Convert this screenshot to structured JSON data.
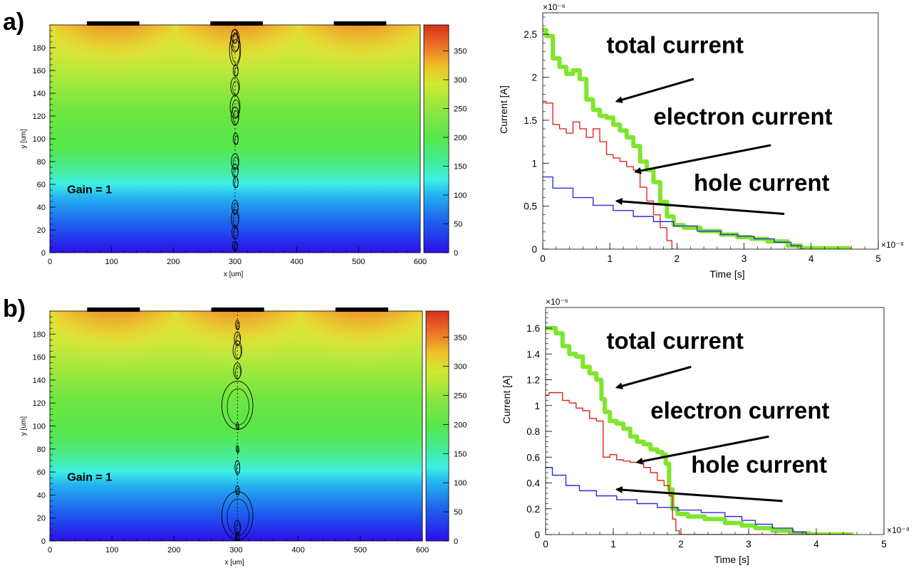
{
  "labels": {
    "a": "a)",
    "b": "b)"
  },
  "colors": {
    "total": "#7ee62b",
    "electron": "#e0281e",
    "hole": "#2d2de0",
    "arrow": "#000000",
    "electrode": "#000000"
  },
  "icons": {
    "arrow": "arrow-icon",
    "electrode": "electrode-bar"
  },
  "chart_data": [
    {
      "id": "a-map",
      "type": "heatmap",
      "title": "",
      "xlabel": "x [um]",
      "ylabel": "y [um]",
      "xlim": [
        0,
        600
      ],
      "ylim": [
        0,
        200
      ],
      "xticks": [
        0,
        100,
        200,
        300,
        400,
        500,
        600
      ],
      "yticks": [
        0,
        20,
        40,
        60,
        80,
        100,
        120,
        140,
        160,
        180
      ],
      "colorbar": {
        "ticks": [
          0,
          50,
          100,
          150,
          200,
          250,
          300,
          350
        ],
        "range": [
          0,
          395
        ]
      },
      "electrodes_x": [
        [
          60,
          145
        ],
        [
          260,
          345
        ],
        [
          460,
          545
        ]
      ],
      "annotation": "Gain = 1",
      "track_x": 300,
      "charge_clouds": [
        {
          "x": 300,
          "y": 186,
          "rx": 7,
          "ry": 10
        },
        {
          "x": 300,
          "y": 178,
          "rx": 9,
          "ry": 14
        },
        {
          "x": 299,
          "y": 190,
          "rx": 5,
          "ry": 6
        },
        {
          "x": 301,
          "y": 160,
          "rx": 4,
          "ry": 5
        },
        {
          "x": 300,
          "y": 146,
          "rx": 7,
          "ry": 8
        },
        {
          "x": 300,
          "y": 128,
          "rx": 8,
          "ry": 10
        },
        {
          "x": 300,
          "y": 120,
          "rx": 6,
          "ry": 8
        },
        {
          "x": 301,
          "y": 100,
          "rx": 4,
          "ry": 5
        },
        {
          "x": 300,
          "y": 80,
          "rx": 6,
          "ry": 7
        },
        {
          "x": 300,
          "y": 72,
          "rx": 5,
          "ry": 6
        },
        {
          "x": 301,
          "y": 62,
          "rx": 4,
          "ry": 5
        },
        {
          "x": 300,
          "y": 40,
          "rx": 5,
          "ry": 6
        },
        {
          "x": 300,
          "y": 30,
          "rx": 6,
          "ry": 8
        },
        {
          "x": 300,
          "y": 18,
          "rx": 5,
          "ry": 6
        },
        {
          "x": 300,
          "y": 6,
          "rx": 4,
          "ry": 4
        }
      ]
    },
    {
      "id": "a-current",
      "type": "line",
      "title": "",
      "xlabel": "Time [s]",
      "ylabel": "Current [A]",
      "x_multiplier": "×10⁻⁹",
      "y_multiplier": "×10⁻⁶",
      "xlim": [
        0,
        5
      ],
      "ylim": [
        0,
        2.75
      ],
      "xticks": [
        0,
        1,
        2,
        3,
        4,
        5
      ],
      "yticks": [
        0,
        0.5,
        1,
        1.5,
        2,
        2.5
      ],
      "annotations": [
        {
          "text": "total current",
          "tx": 0.95,
          "ty": 2.28,
          "ax0": 2.25,
          "ay0": 1.98,
          "ax1": 1.1,
          "ay1": 1.72
        },
        {
          "text": "electron current",
          "tx": 1.65,
          "ty": 1.45,
          "ax0": 3.4,
          "ay0": 1.21,
          "ax1": 1.38,
          "ay1": 0.9
        },
        {
          "text": "hole current",
          "tx": 2.25,
          "ty": 0.68,
          "ax0": 3.6,
          "ay0": 0.41,
          "ax1": 1.1,
          "ay1": 0.56
        }
      ],
      "series": [
        {
          "key": "total",
          "width": 6,
          "x": [
            0,
            0.1,
            0.2,
            0.3,
            0.4,
            0.5,
            0.6,
            0.7,
            0.8,
            0.9,
            1.0,
            1.1,
            1.2,
            1.3,
            1.4,
            1.5,
            1.6,
            1.7,
            1.8,
            1.9,
            2.0,
            2.2,
            2.5,
            2.8,
            3.0,
            3.2,
            3.5,
            3.8,
            3.9,
            4.6
          ],
          "y": [
            2.55,
            2.48,
            2.22,
            2.12,
            2.04,
            2.08,
            1.98,
            1.74,
            1.62,
            1.55,
            1.53,
            1.45,
            1.38,
            1.3,
            1.2,
            1.02,
            0.92,
            0.78,
            0.55,
            0.38,
            0.28,
            0.25,
            0.21,
            0.17,
            0.14,
            0.12,
            0.09,
            0.04,
            0.01,
            0.01
          ]
        },
        {
          "key": "electron",
          "width": 1.4,
          "x": [
            0,
            0.1,
            0.2,
            0.3,
            0.4,
            0.5,
            0.6,
            0.7,
            0.8,
            0.9,
            1.0,
            1.1,
            1.2,
            1.3,
            1.4,
            1.5,
            1.6,
            1.7,
            1.8,
            1.9,
            1.95
          ],
          "y": [
            1.72,
            1.7,
            1.45,
            1.4,
            1.35,
            1.48,
            1.4,
            1.3,
            1.4,
            1.25,
            1.1,
            1.06,
            1.02,
            0.96,
            0.92,
            0.72,
            0.56,
            0.4,
            0.25,
            0.1,
            0.0
          ]
        },
        {
          "key": "hole",
          "width": 1.4,
          "x": [
            0,
            0.3,
            0.6,
            0.9,
            1.2,
            1.5,
            1.8,
            2.1,
            2.5,
            2.8,
            3.0,
            3.3,
            3.6,
            3.8,
            3.9
          ],
          "y": [
            0.84,
            0.71,
            0.6,
            0.51,
            0.45,
            0.38,
            0.32,
            0.27,
            0.21,
            0.17,
            0.15,
            0.12,
            0.08,
            0.04,
            0.0
          ]
        }
      ]
    },
    {
      "id": "b-map",
      "type": "heatmap",
      "title": "",
      "xlabel": "x [um]",
      "ylabel": "y [um]",
      "xlim": [
        0,
        600
      ],
      "ylim": [
        0,
        200
      ],
      "xticks": [
        0,
        100,
        200,
        300,
        400,
        500,
        600
      ],
      "yticks": [
        0,
        20,
        40,
        60,
        80,
        100,
        120,
        140,
        160,
        180
      ],
      "colorbar": {
        "ticks": [
          0,
          50,
          100,
          150,
          200,
          250,
          300,
          350
        ],
        "range": [
          0,
          395
        ]
      },
      "electrodes_x": [
        [
          60,
          145
        ],
        [
          260,
          345
        ],
        [
          460,
          545
        ]
      ],
      "annotation": "Gain = 1",
      "track_x": 302,
      "charge_clouds": [
        {
          "x": 302,
          "y": 188,
          "rx": 3,
          "ry": 4
        },
        {
          "x": 302,
          "y": 176,
          "rx": 5,
          "ry": 6
        },
        {
          "x": 302,
          "y": 166,
          "rx": 7,
          "ry": 8
        },
        {
          "x": 302,
          "y": 148,
          "rx": 6,
          "ry": 7
        },
        {
          "x": 302,
          "y": 118,
          "rx": 25,
          "ry": 21
        },
        {
          "x": 302,
          "y": 100,
          "rx": 2,
          "ry": 3
        },
        {
          "x": 302,
          "y": 80,
          "rx": 2,
          "ry": 3
        },
        {
          "x": 302,
          "y": 64,
          "rx": 4,
          "ry": 6
        },
        {
          "x": 302,
          "y": 44,
          "rx": 3,
          "ry": 4
        },
        {
          "x": 302,
          "y": 22,
          "rx": 25,
          "ry": 21
        },
        {
          "x": 302,
          "y": 12,
          "rx": 5,
          "ry": 6
        },
        {
          "x": 302,
          "y": 4,
          "rx": 3,
          "ry": 4
        }
      ]
    },
    {
      "id": "b-current",
      "type": "line",
      "title": "",
      "xlabel": "Time [s]",
      "ylabel": "Current [A]",
      "x_multiplier": "×10⁻⁹",
      "y_multiplier": "×10⁻⁶",
      "xlim": [
        0,
        5
      ],
      "ylim": [
        0,
        1.76
      ],
      "xticks": [
        0,
        1,
        2,
        3,
        4,
        5
      ],
      "yticks": [
        0,
        0.2,
        0.4,
        0.6,
        0.8,
        1,
        1.2,
        1.4,
        1.6
      ],
      "annotations": [
        {
          "text": "total current",
          "tx": 0.9,
          "ty": 1.44,
          "ax0": 2.15,
          "ay0": 1.3,
          "ax1": 1.05,
          "ay1": 1.14
        },
        {
          "text": "electron current",
          "tx": 1.55,
          "ty": 0.9,
          "ax0": 3.3,
          "ay0": 0.76,
          "ax1": 1.35,
          "ay1": 0.56
        },
        {
          "text": "hole current",
          "tx": 2.15,
          "ty": 0.48,
          "ax0": 3.5,
          "ay0": 0.26,
          "ax1": 1.05,
          "ay1": 0.35
        }
      ],
      "series": [
        {
          "key": "total",
          "width": 6,
          "x": [
            0,
            0.1,
            0.2,
            0.3,
            0.4,
            0.5,
            0.6,
            0.7,
            0.8,
            0.85,
            0.9,
            1.0,
            1.1,
            1.2,
            1.3,
            1.4,
            1.5,
            1.6,
            1.7,
            1.75,
            1.8,
            1.85,
            1.9,
            2.0,
            2.2,
            2.5,
            2.8,
            3.0,
            3.2,
            3.5,
            3.8,
            4.0,
            4.55
          ],
          "y": [
            1.6,
            1.6,
            1.56,
            1.46,
            1.4,
            1.38,
            1.3,
            1.25,
            1.2,
            1.05,
            0.95,
            0.88,
            0.86,
            0.82,
            0.76,
            0.72,
            0.7,
            0.66,
            0.64,
            0.62,
            0.55,
            0.35,
            0.2,
            0.16,
            0.14,
            0.12,
            0.09,
            0.07,
            0.05,
            0.03,
            0.01,
            0.0,
            0.0
          ]
        },
        {
          "key": "electron",
          "width": 1.4,
          "x": [
            0,
            0.1,
            0.2,
            0.3,
            0.4,
            0.5,
            0.6,
            0.7,
            0.8,
            0.9,
            1.0,
            1.1,
            1.2,
            1.3,
            1.4,
            1.5,
            1.6,
            1.7,
            1.8,
            1.85,
            1.9,
            1.95,
            2.0,
            4.5
          ],
          "y": [
            1.08,
            1.1,
            1.1,
            1.04,
            1.02,
            0.98,
            0.96,
            0.9,
            0.88,
            0.6,
            0.62,
            0.58,
            0.57,
            0.56,
            0.56,
            0.52,
            0.48,
            0.42,
            0.38,
            0.3,
            0.12,
            0.03,
            0.0,
            0.0
          ]
        },
        {
          "key": "hole",
          "width": 1.4,
          "x": [
            0,
            0.2,
            0.4,
            0.6,
            0.9,
            1.2,
            1.5,
            1.8,
            2.1,
            2.5,
            2.8,
            3.0,
            3.2,
            3.5,
            3.8,
            3.9
          ],
          "y": [
            0.52,
            0.46,
            0.38,
            0.34,
            0.3,
            0.27,
            0.24,
            0.21,
            0.19,
            0.17,
            0.14,
            0.11,
            0.08,
            0.05,
            0.02,
            0.0
          ]
        }
      ]
    }
  ]
}
